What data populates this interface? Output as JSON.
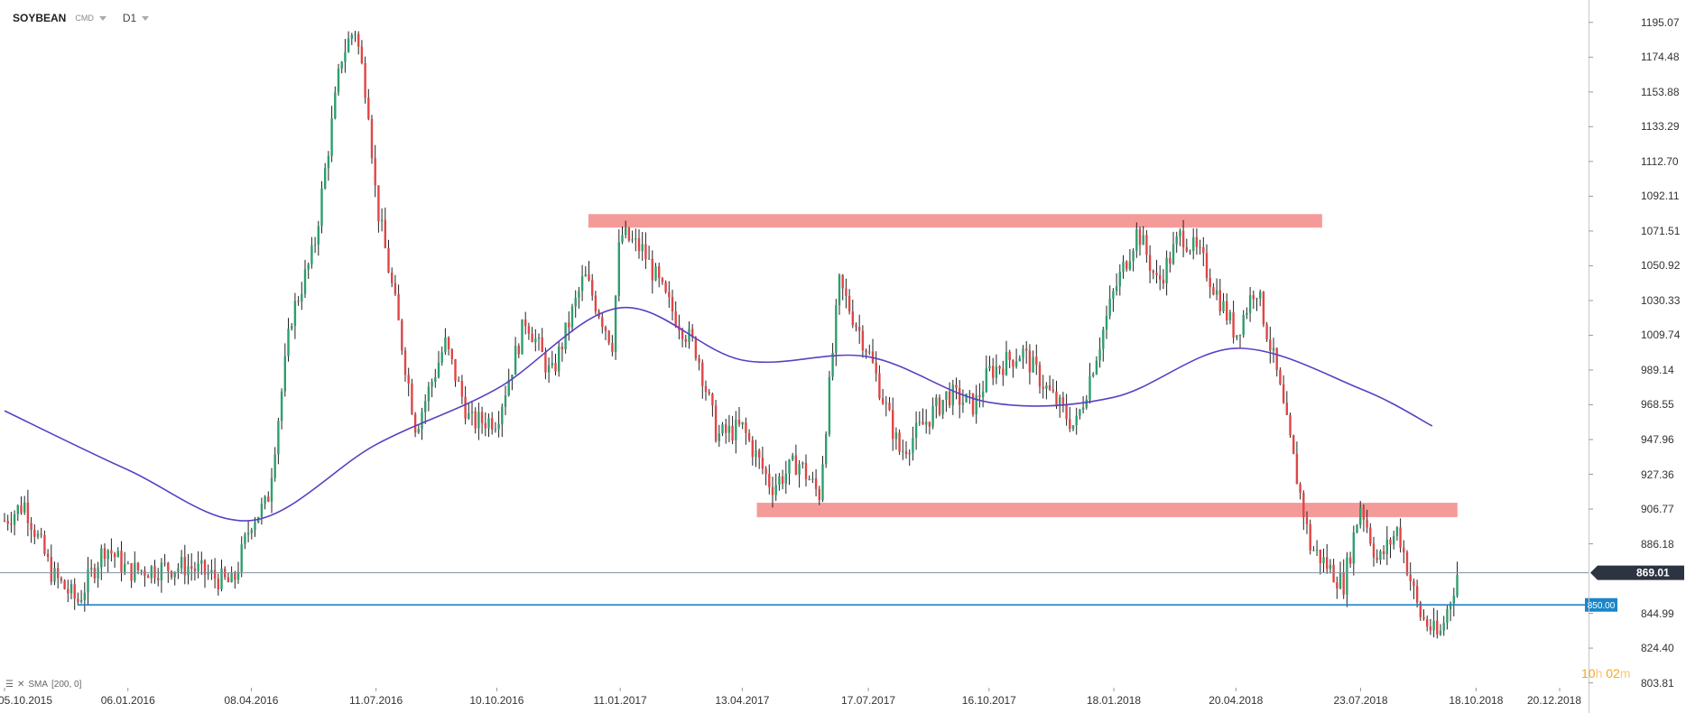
{
  "toolbar": {
    "symbol": "SOYBEAN",
    "source": "CMD",
    "timeframe": "D1"
  },
  "indicator": {
    "label": "SMA",
    "params": "[200,  0]"
  },
  "timer": {
    "h_num": "10",
    "h_unit": "h",
    "m_num": "02",
    "m_unit": "m"
  },
  "colors": {
    "up": "#2e9e6e",
    "down": "#e04545",
    "sma": "#5b3fc4",
    "zone": "#f28a87",
    "support": "#1a86c9",
    "price_line": "#8090a0",
    "price_tag": "#2b3440"
  },
  "chart_data": {
    "type": "candlestick",
    "y_axis": {
      "ticks": [
        "1195.07",
        "1174.48",
        "1153.88",
        "1133.29",
        "1112.70",
        "1092.11",
        "1071.51",
        "1050.92",
        "1030.33",
        "1009.74",
        "989.14",
        "968.55",
        "947.96",
        "927.36",
        "906.77",
        "886.18",
        "844.99",
        "824.40",
        "803.81"
      ],
      "ylim": [
        802.0,
        1203.0
      ]
    },
    "x_axis": {
      "ticks": [
        "05.10.2015",
        "06.01.2016",
        "08.04.2016",
        "11.07.2016",
        "10.10.2016",
        "11.01.2017",
        "13.04.2017",
        "17.07.2017",
        "16.10.2017",
        "18.01.2018",
        "20.04.2018",
        "23.07.2018",
        "18.10.2018",
        "20.12.2018"
      ]
    },
    "current_price": {
      "label": "869.01",
      "value": 869.01
    },
    "support_line": {
      "label": "850.00",
      "value": 850.0,
      "x_start": "29.11.2015"
    },
    "resistance_zones": [
      {
        "from": "18.12.2016",
        "to": "24.06.2018",
        "low": 1073.5,
        "high": 1081.5
      },
      {
        "from": "24.04.2017",
        "to": "04.10.2018",
        "low": 902.0,
        "high": 910.5
      }
    ],
    "sma": {
      "name": "SMA 200",
      "points": [
        [
          "05.10.2015",
          965
        ],
        [
          "06.01.2016",
          930
        ],
        [
          "08.04.2016",
          900
        ],
        [
          "11.07.2016",
          945
        ],
        [
          "10.10.2016",
          978
        ],
        [
          "11.01.2017",
          1026
        ],
        [
          "13.04.2017",
          995
        ],
        [
          "17.07.2017",
          997
        ],
        [
          "16.10.2017",
          970
        ],
        [
          "18.01.2018",
          973
        ],
        [
          "20.04.2018",
          1002
        ],
        [
          "23.07.2018",
          978
        ],
        [
          "15.09.2018",
          956
        ]
      ]
    },
    "price_path": [
      [
        "05.10.2015",
        900
      ],
      [
        "20.10.2015",
        910
      ],
      [
        "10.11.2015",
        868
      ],
      [
        "29.11.2015",
        852
      ],
      [
        "20.12.2015",
        885
      ],
      [
        "06.01.2016",
        870
      ],
      [
        "20.02.2016",
        873
      ],
      [
        "25.03.2016",
        862
      ],
      [
        "08.04.2016",
        900
      ],
      [
        "20.04.2016",
        910
      ],
      [
        "08.05.2016",
        1020
      ],
      [
        "25.05.2016",
        1060
      ],
      [
        "15.06.2016",
        1175
      ],
      [
        "25.06.2016",
        1192
      ],
      [
        "05.07.2016",
        1148
      ],
      [
        "11.07.2016",
        1090
      ],
      [
        "25.07.2016",
        1030
      ],
      [
        "10.08.2016",
        955
      ],
      [
        "01.09.2016",
        1005
      ],
      [
        "20.09.2016",
        958
      ],
      [
        "10.10.2016",
        960
      ],
      [
        "01.11.2016",
        1020
      ],
      [
        "20.11.2016",
        985
      ],
      [
        "15.12.2016",
        1045
      ],
      [
        "05.01.2017",
        1005
      ],
      [
        "11.01.2017",
        1070
      ],
      [
        "28.01.2017",
        1060
      ],
      [
        "15.02.2017",
        1030
      ],
      [
        "10.03.2017",
        1000
      ],
      [
        "25.03.2017",
        950
      ],
      [
        "13.04.2017",
        955
      ],
      [
        "05.05.2017",
        920
      ],
      [
        "25.05.2017",
        935
      ],
      [
        "10.06.2017",
        915
      ],
      [
        "25.06.2017",
        1040
      ],
      [
        "17.07.2017",
        1000
      ],
      [
        "10.08.2017",
        940
      ],
      [
        "15.09.2017",
        975
      ],
      [
        "05.10.2017",
        968
      ],
      [
        "16.10.2017",
        988
      ],
      [
        "10.11.2017",
        1000
      ],
      [
        "01.12.2017",
        975
      ],
      [
        "20.12.2017",
        955
      ],
      [
        "18.01.2018",
        1035
      ],
      [
        "05.02.2018",
        1072
      ],
      [
        "20.02.2018",
        1040
      ],
      [
        "10.03.2018",
        1070
      ],
      [
        "25.03.2018",
        1055
      ],
      [
        "20.04.2018",
        1010
      ],
      [
        "05.05.2018",
        1040
      ],
      [
        "20.05.2018",
        990
      ],
      [
        "15.06.2018",
        885
      ],
      [
        "10.07.2018",
        862
      ],
      [
        "23.07.2018",
        910
      ],
      [
        "05.08.2018",
        875
      ],
      [
        "20.08.2018",
        895
      ],
      [
        "05.09.2018",
        845
      ],
      [
        "20.09.2018",
        830
      ],
      [
        "01.10.2018",
        860
      ],
      [
        "04.10.2018",
        869
      ]
    ]
  }
}
